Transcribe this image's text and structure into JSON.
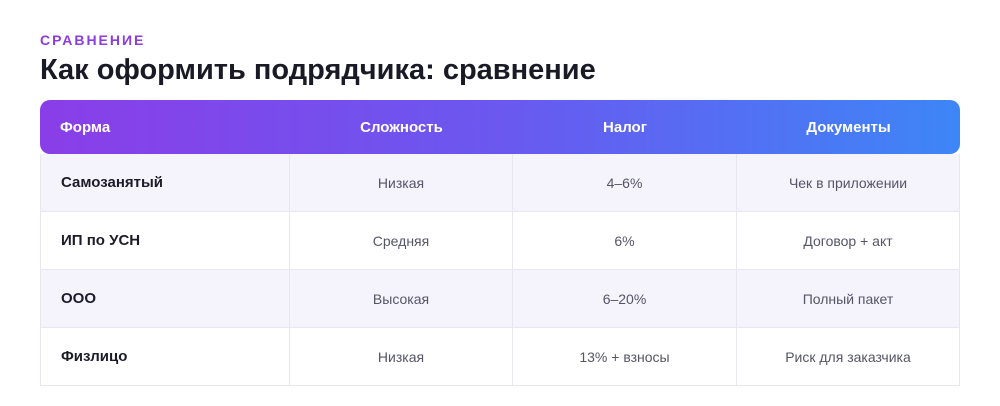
{
  "eyebrow": "СРАВНЕНИЕ",
  "title": "Как оформить подрядчика: сравнение",
  "table": {
    "headers": [
      "Форма",
      "Сложность",
      "Налог",
      "Документы"
    ],
    "rows": [
      [
        "Самозанятый",
        "Низкая",
        "4–6%",
        "Чек в приложении"
      ],
      [
        "ИП по УСН",
        "Средняя",
        "6%",
        "Договор + акт"
      ],
      [
        "ООО",
        "Высокая",
        "6–20%",
        "Полный пакет"
      ],
      [
        "Физлицо",
        "Низкая",
        "13% + взносы",
        "Риск для заказчика"
      ]
    ]
  },
  "colors": {
    "accent": "#8b3ddb",
    "header_gradient_start": "#8a3ee8",
    "header_gradient_end": "#3d86f7",
    "row_alt": "#f5f3fc"
  }
}
